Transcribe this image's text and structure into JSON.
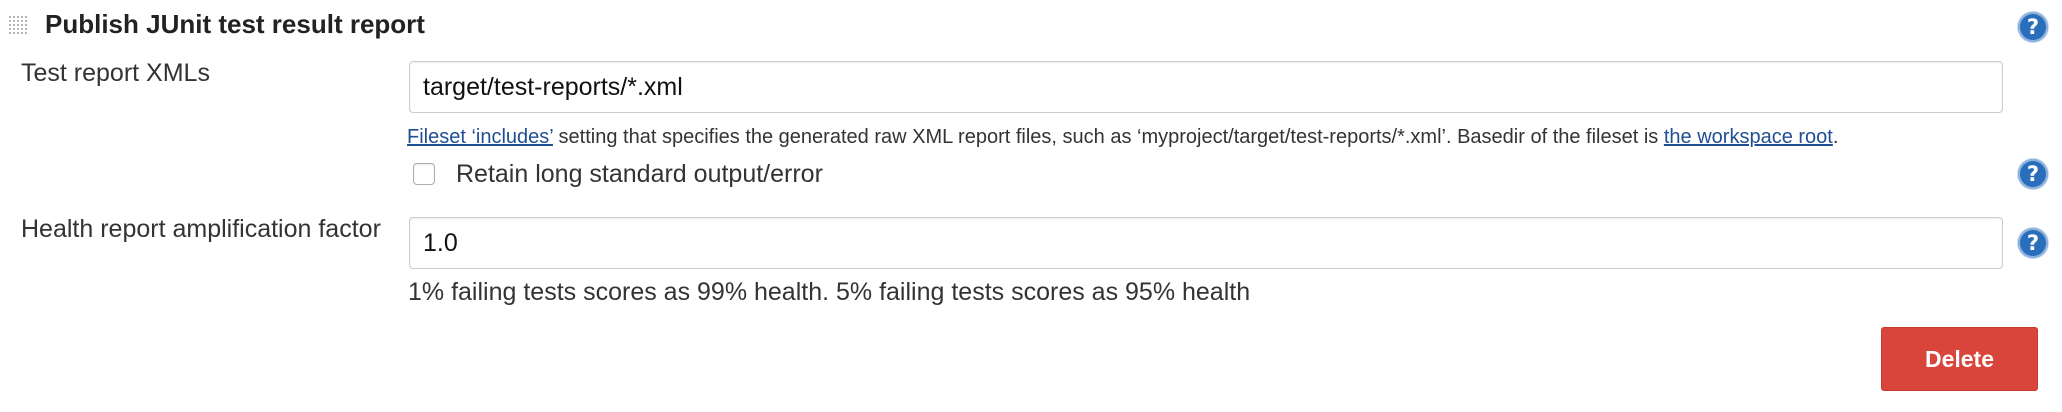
{
  "section": {
    "title": "Publish JUnit test result report",
    "drag_handle_icon": "grip-dots-icon",
    "help_icon": "question-mark-icon"
  },
  "test_report_xmls": {
    "label": "Test report XMLs",
    "value": "target/test-reports/*.xml",
    "help_link_fileset": "Fileset ‘includes’",
    "help_text_middle": " setting that specifies the generated raw XML report files, such as ‘myproject/target/test-reports/*.xml’. Basedir of the fileset is ",
    "help_link_workspace": "the workspace root",
    "help_text_end": "."
  },
  "retain_output": {
    "label": "Retain long standard output/error",
    "checked": false,
    "help_icon": "question-mark-icon"
  },
  "health_factor": {
    "label": "Health report amplification factor",
    "value": "1.0",
    "description": "1% failing tests scores as 99% health. 5% failing tests scores as 95% health",
    "help_icon": "question-mark-icon"
  },
  "actions": {
    "delete_label": "Delete"
  },
  "colors": {
    "delete_button": "#d9443b",
    "help_icon": "#2a6ebb",
    "link": "#1f4e93"
  }
}
